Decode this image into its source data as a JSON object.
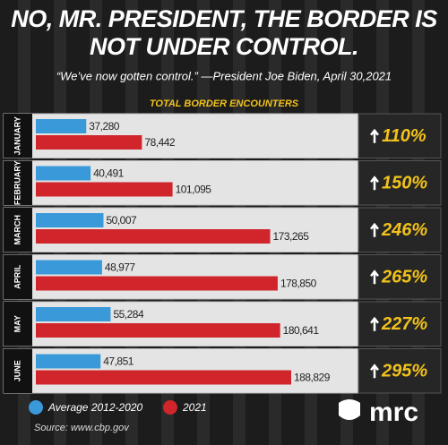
{
  "chart_data": {
    "type": "hbar",
    "title": "NO, MR. PRESIDENT, THE BORDER IS NOT UNDER CONTROL.",
    "subtitle": "“We’ve now gotten control.” —President Joe Biden, April 30,2021",
    "chart_title": "TOTAL BORDER ENCOUNTERS",
    "categories": [
      "JANUARY",
      "FEBRUARY",
      "MARCH",
      "APRIL",
      "MAY",
      "JUNE"
    ],
    "series": [
      {
        "name": "Average 2012-2020",
        "color": "#3a9ad9",
        "values": [
          37280,
          40491,
          50007,
          48977,
          55284,
          47851
        ],
        "value_labels": [
          "37,280",
          "40,491",
          "50,007",
          "48,977",
          "55,284",
          "47,851"
        ]
      },
      {
        "name": "2021",
        "color": "#d0262b",
        "values": [
          78442,
          101095,
          173265,
          178850,
          180641,
          188829
        ],
        "value_labels": [
          "78,442",
          "101,095",
          "173,265",
          "178,850",
          "180,641",
          "188,829"
        ]
      }
    ],
    "change_labels": [
      "110%",
      "150%",
      "246%",
      "265%",
      "227%",
      "295%"
    ],
    "source": "Source: www.cbp.gov",
    "logo": "mrc"
  }
}
